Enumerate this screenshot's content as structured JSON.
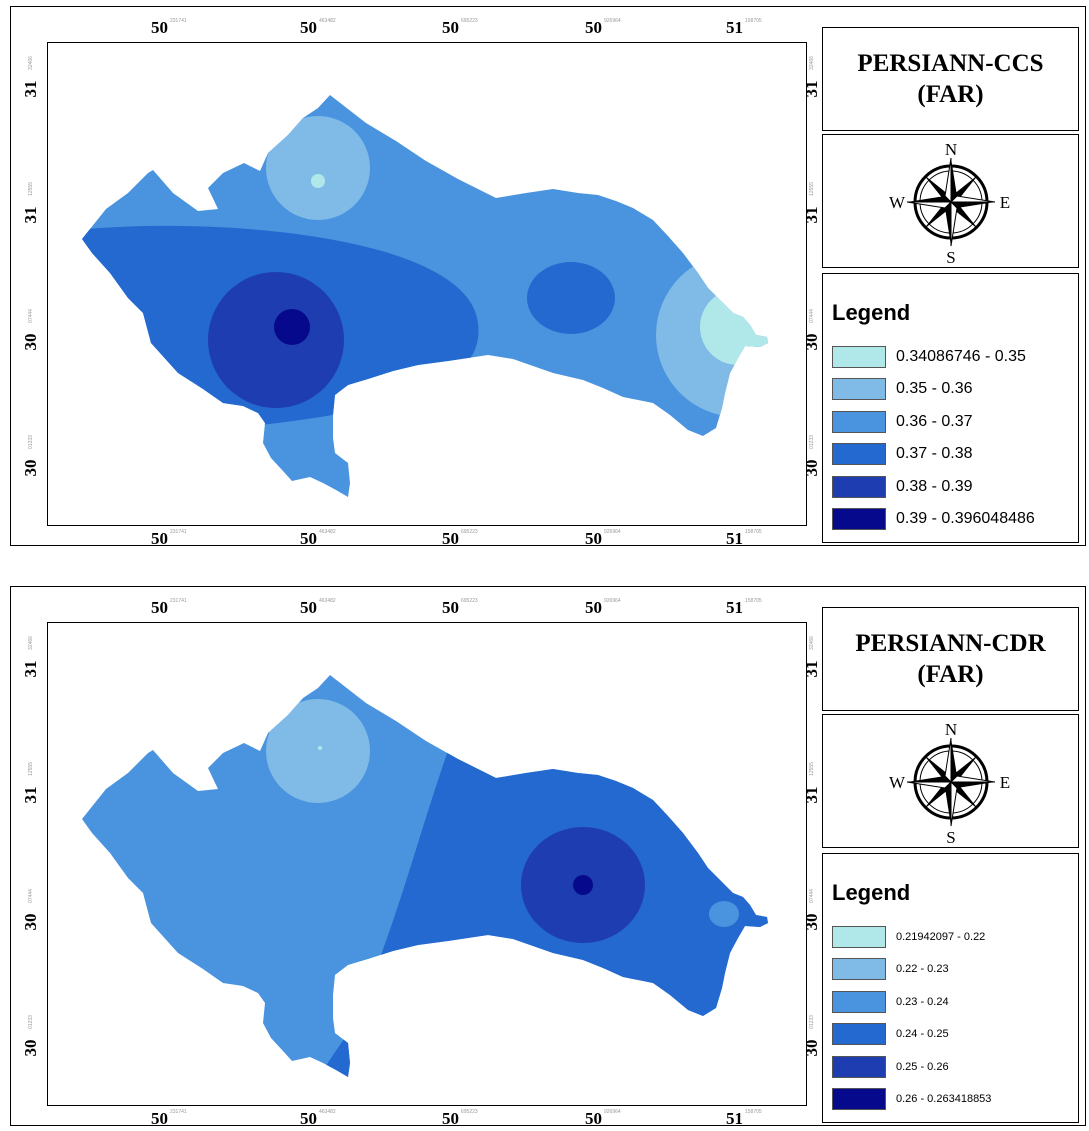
{
  "colors": {
    "class1": "#b0e8ea",
    "class2": "#80bbe7",
    "class3": "#4a94df",
    "class4": "#2469cf",
    "class5": "#1e3db0",
    "class6": "#06098c"
  },
  "coordinate_labels": {
    "top": [
      {
        "deg": "50",
        "sup": "231741"
      },
      {
        "deg": "50",
        "sup": "463482"
      },
      {
        "deg": "50",
        "sup": "695223"
      },
      {
        "deg": "50",
        "sup": "926964"
      },
      {
        "deg": "51",
        "sup": "158705"
      }
    ],
    "bottom": [
      {
        "deg": "50",
        "sup": "231741"
      },
      {
        "deg": "50",
        "sup": "463482"
      },
      {
        "deg": "50",
        "sup": "695223"
      },
      {
        "deg": "50",
        "sup": "926964"
      },
      {
        "deg": "51",
        "sup": "158705"
      }
    ],
    "left": [
      {
        "deg": "31",
        "sup": "32466"
      },
      {
        "deg": "31",
        "sup": "12555"
      },
      {
        "deg": "30",
        "sup": "07444"
      },
      {
        "deg": "30",
        "sup": "01233"
      }
    ],
    "right": [
      {
        "deg": "31",
        "sup": "32466"
      },
      {
        "deg": "31",
        "sup": "12555"
      },
      {
        "deg": "30",
        "sup": "07444"
      },
      {
        "deg": "30",
        "sup": "01233"
      }
    ]
  },
  "compass": {
    "n": "N",
    "s": "S",
    "e": "E",
    "w": "W"
  },
  "maps": [
    {
      "title_line1": "PERSIANN-CCS",
      "title_line2": "(FAR)",
      "legend_title": "Legend",
      "legend_items": [
        {
          "label": "0.34086746 - 0.35",
          "color": "#b0e8ea"
        },
        {
          "label": "0.35 - 0.36",
          "color": "#80bbe7"
        },
        {
          "label": "0.36 - 0.37",
          "color": "#4a94df"
        },
        {
          "label": "0.37 - 0.38",
          "color": "#2469cf"
        },
        {
          "label": "0.38 - 0.39",
          "color": "#1e3db0"
        },
        {
          "label": "0.39 - 0.396048486",
          "color": "#06098c"
        }
      ]
    },
    {
      "title_line1": "PERSIANN-CDR",
      "title_line2": "(FAR)",
      "legend_title": "Legend",
      "legend_items": [
        {
          "label": "0.21942097 - 0.22",
          "color": "#b0e8ea"
        },
        {
          "label": "0.22 - 0.23",
          "color": "#80bbe7"
        },
        {
          "label": "0.23 - 0.24",
          "color": "#4a94df"
        },
        {
          "label": "0.24 - 0.25",
          "color": "#2469cf"
        },
        {
          "label": "0.25 - 0.26",
          "color": "#1e3db0"
        },
        {
          "label": "0.26 - 0.263418853",
          "color": "#06098c"
        }
      ]
    }
  ]
}
